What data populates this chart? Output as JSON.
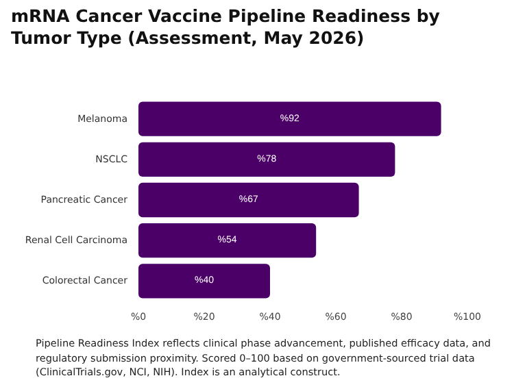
{
  "chart_data": {
    "type": "bar",
    "orientation": "horizontal",
    "title": "mRNA Cancer Vaccine Pipeline Readiness by Tumor Type (Assessment, May 2026)",
    "categories": [
      "Melanoma",
      "NSCLC",
      "Pancreatic Cancer",
      "Renal Cell Carcinoma",
      "Colorectal Cancer"
    ],
    "values": [
      92,
      78,
      67,
      54,
      40
    ],
    "color": "#4b0068",
    "value_labels": [
      "%92",
      "%78",
      "%67",
      "%54",
      "%40"
    ],
    "xlim": [
      0,
      100
    ],
    "xticks": [
      {
        "value": 0,
        "label": "%0"
      },
      {
        "value": 20,
        "label": "%20"
      },
      {
        "value": 40,
        "label": "%40"
      },
      {
        "value": 60,
        "label": "%60"
      },
      {
        "value": 80,
        "label": "%80"
      },
      {
        "value": 100,
        "label": "%100"
      }
    ],
    "grid": false,
    "annotations": [
      "Pipeline Readiness Index reflects clinical phase advancement, published efficacy data, and regulatory submission proximity. Scored 0–100 based on government-sourced trial data (ClinicalTrials.gov, NCI, NIH). Index is an analytical construct."
    ]
  }
}
